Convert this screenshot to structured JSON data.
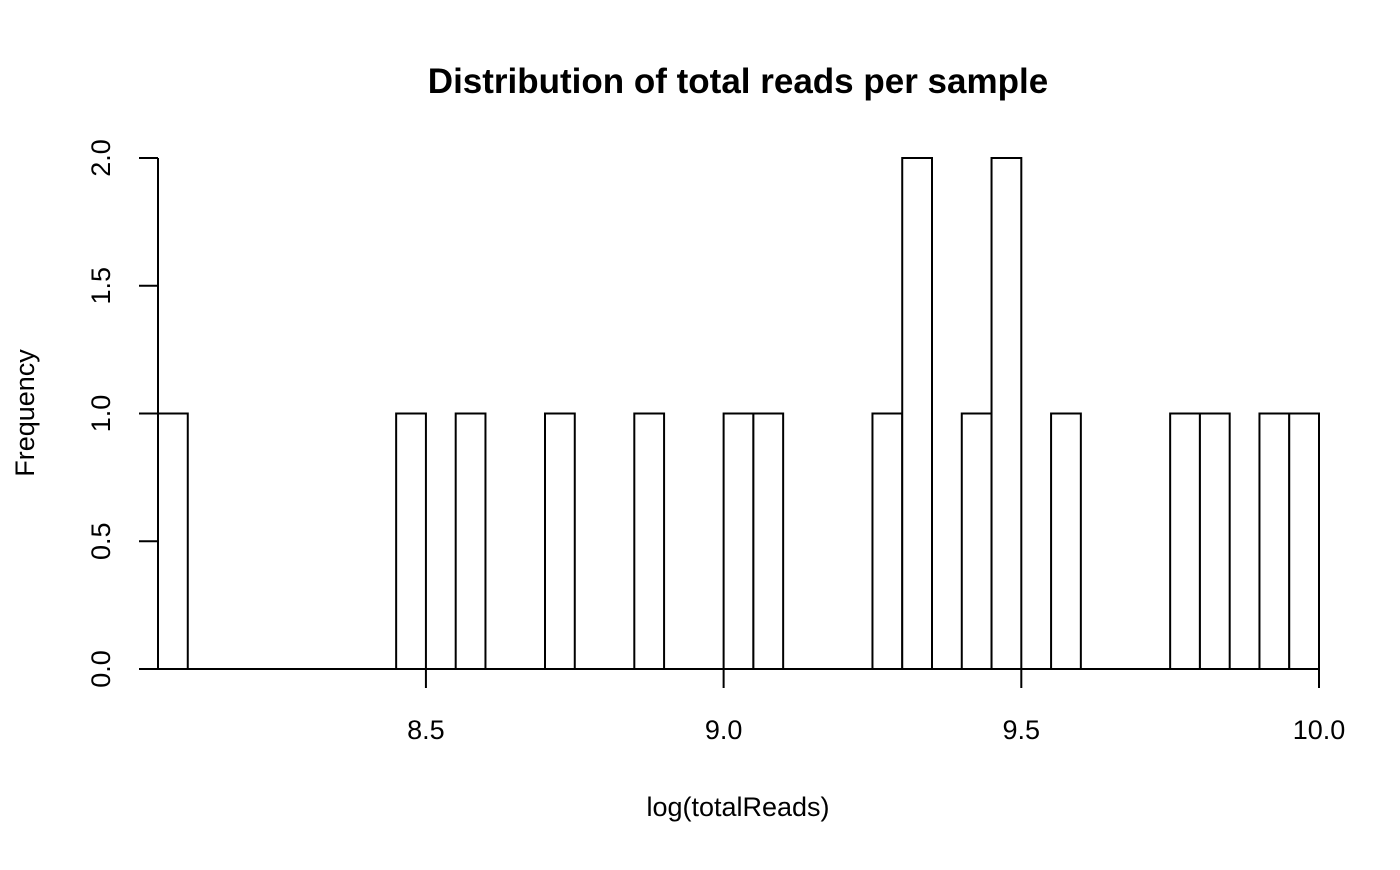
{
  "chart_data": {
    "type": "bar",
    "title": "Distribution of total reads per sample",
    "xlabel": "log(totalReads)",
    "ylabel": "Frequency",
    "xlim": [
      8.05,
      10.0
    ],
    "ylim": [
      0,
      2
    ],
    "grid": false,
    "bin_width": 0.05,
    "bins": [
      {
        "start": 8.05,
        "end": 8.1,
        "count": 1
      },
      {
        "start": 8.45,
        "end": 8.5,
        "count": 1
      },
      {
        "start": 8.55,
        "end": 8.6,
        "count": 1
      },
      {
        "start": 8.7,
        "end": 8.75,
        "count": 1
      },
      {
        "start": 8.85,
        "end": 8.9,
        "count": 1
      },
      {
        "start": 9.0,
        "end": 9.05,
        "count": 1
      },
      {
        "start": 9.05,
        "end": 9.1,
        "count": 1
      },
      {
        "start": 9.25,
        "end": 9.3,
        "count": 1
      },
      {
        "start": 9.3,
        "end": 9.35,
        "count": 2
      },
      {
        "start": 9.4,
        "end": 9.45,
        "count": 1
      },
      {
        "start": 9.45,
        "end": 9.5,
        "count": 2
      },
      {
        "start": 9.55,
        "end": 9.6,
        "count": 1
      },
      {
        "start": 9.75,
        "end": 9.8,
        "count": 1
      },
      {
        "start": 9.8,
        "end": 9.85,
        "count": 1
      },
      {
        "start": 9.9,
        "end": 9.95,
        "count": 1
      },
      {
        "start": 9.95,
        "end": 10.0,
        "count": 1
      }
    ],
    "x_ticks": [
      {
        "value": 8.5,
        "label": "8.5"
      },
      {
        "value": 9.0,
        "label": "9.0"
      },
      {
        "value": 9.5,
        "label": "9.5"
      },
      {
        "value": 10.0,
        "label": "10.0"
      }
    ],
    "y_ticks": [
      {
        "value": 0.0,
        "label": "0.0"
      },
      {
        "value": 0.5,
        "label": "0.5"
      },
      {
        "value": 1.0,
        "label": "1.0"
      },
      {
        "value": 1.5,
        "label": "1.5"
      },
      {
        "value": 2.0,
        "label": "2.0"
      }
    ]
  }
}
